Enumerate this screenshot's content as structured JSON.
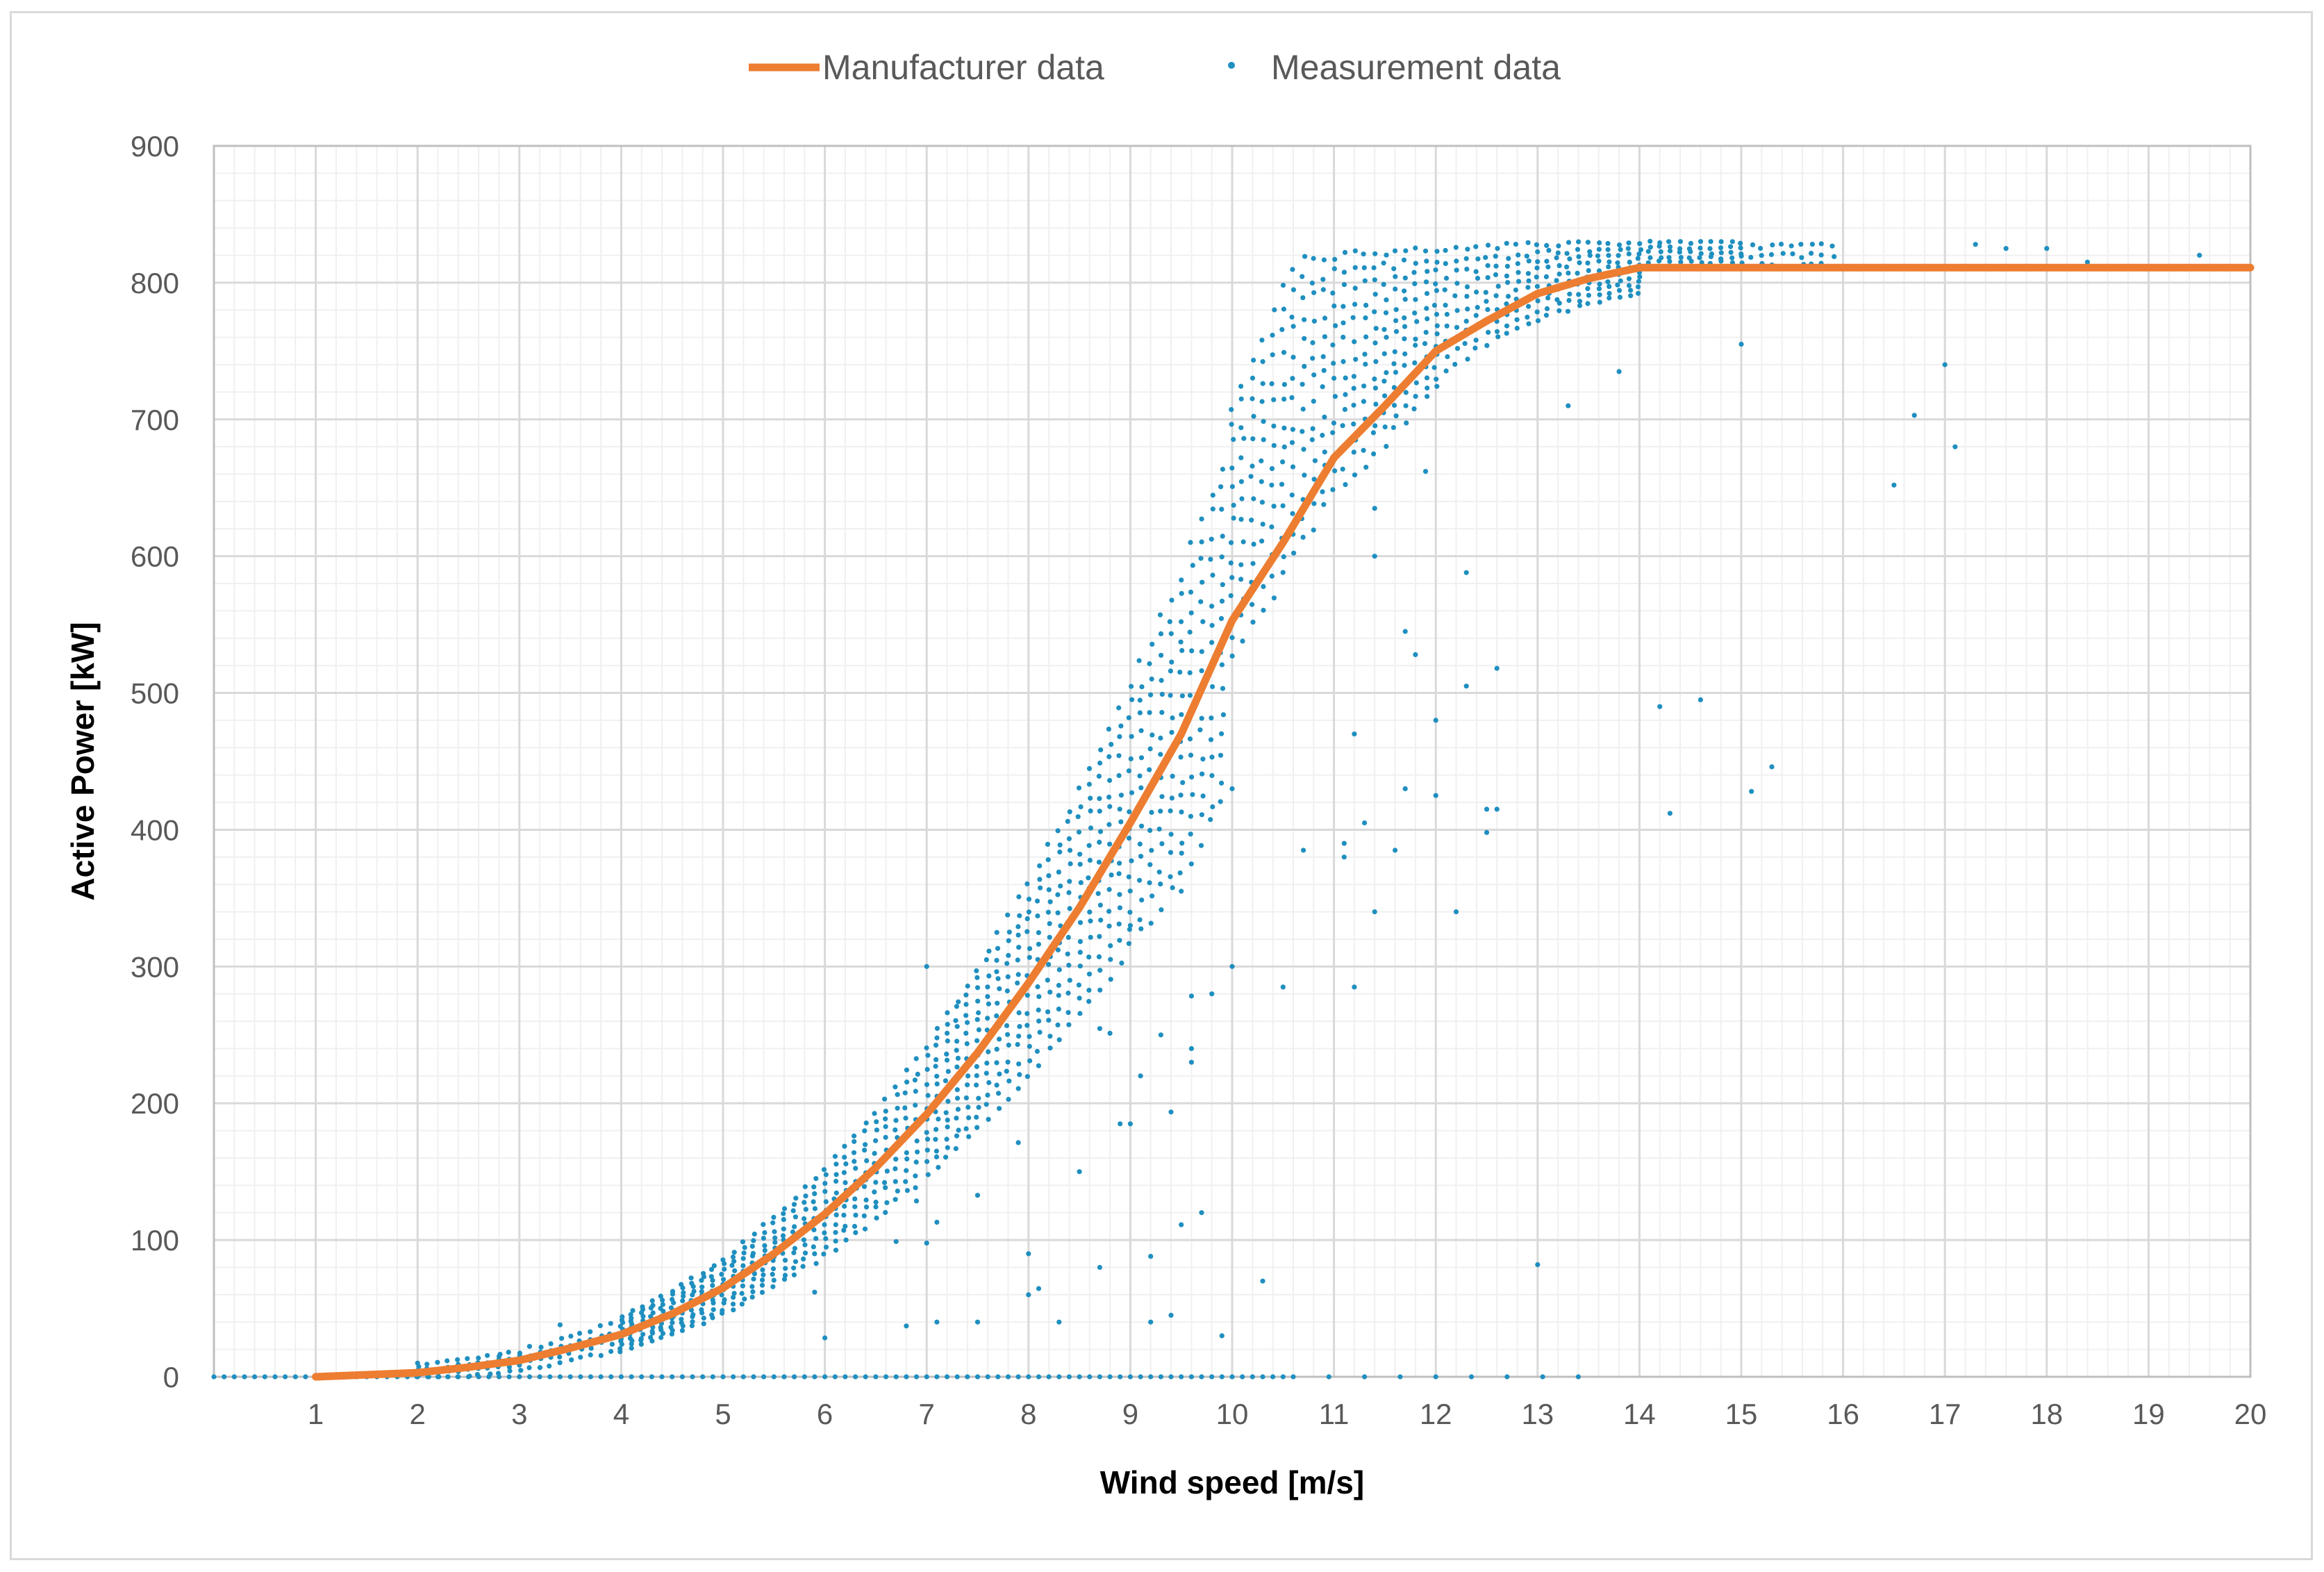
{
  "chart_data": {
    "type": "scatter",
    "xlabel": "Wind speed [m/s]",
    "ylabel": "Active Power [kW]",
    "xlim": [
      0,
      20
    ],
    "ylim": [
      0,
      900
    ],
    "x_ticks": [
      "1",
      "2",
      "3",
      "4",
      "5",
      "6",
      "7",
      "8",
      "9",
      "10",
      "11",
      "12",
      "13",
      "14",
      "15",
      "16",
      "17",
      "18",
      "19",
      "20"
    ],
    "y_ticks": [
      "0",
      "100",
      "200",
      "300",
      "400",
      "500",
      "600",
      "700",
      "800",
      "900"
    ],
    "grid": true,
    "legend_position": "top-center",
    "series": [
      {
        "name": "Manufacturer data",
        "kind": "line",
        "color": "#ED7D31",
        "x": [
          1,
          2,
          2.5,
          3,
          3.5,
          4,
          4.5,
          5,
          5.5,
          6,
          6.5,
          7,
          7.5,
          8,
          8.5,
          9,
          9.5,
          10,
          10.5,
          11,
          11.5,
          12,
          12.5,
          13,
          13.5,
          14,
          15,
          16,
          17,
          18,
          19,
          20
        ],
        "y": [
          0,
          3,
          7,
          12,
          21,
          31,
          46,
          65,
          90,
          119,
          153,
          192,
          237,
          288,
          343,
          405,
          470,
          553,
          610,
          672,
          710,
          750,
          772,
          792,
          803,
          811,
          811,
          811,
          811,
          811,
          811,
          811
        ]
      },
      {
        "name": "Measurement data",
        "kind": "scatter",
        "color": "#1F8FBF",
        "outliers": [
          [
            7.0,
            300
          ],
          [
            7.1,
            40
          ],
          [
            7.5,
            40
          ],
          [
            8.0,
            90
          ],
          [
            8.0,
            60
          ],
          [
            8.3,
            40
          ],
          [
            8.5,
            150
          ],
          [
            8.7,
            80
          ],
          [
            8.9,
            185
          ],
          [
            9.0,
            185
          ],
          [
            9.0,
            330
          ],
          [
            9.1,
            220
          ],
          [
            9.2,
            40
          ],
          [
            9.3,
            250
          ],
          [
            9.4,
            45
          ],
          [
            9.5,
            355
          ],
          [
            9.6,
            240
          ],
          [
            9.6,
            230
          ],
          [
            9.7,
            120
          ],
          [
            9.8,
            280
          ],
          [
            9.9,
            30
          ],
          [
            10.0,
            300
          ],
          [
            10.0,
            430
          ],
          [
            10.3,
            70
          ],
          [
            10.5,
            285
          ],
          [
            10.7,
            385
          ],
          [
            11.1,
            380
          ],
          [
            11.1,
            390
          ],
          [
            11.2,
            285
          ],
          [
            11.2,
            470
          ],
          [
            11.3,
            405
          ],
          [
            11.4,
            340
          ],
          [
            11.4,
            600
          ],
          [
            11.4,
            635
          ],
          [
            11.6,
            385
          ],
          [
            11.7,
            430
          ],
          [
            11.7,
            545
          ],
          [
            11.8,
            528
          ],
          [
            11.9,
            662
          ],
          [
            12.0,
            425
          ],
          [
            12.0,
            480
          ],
          [
            12.2,
            340
          ],
          [
            12.3,
            505
          ],
          [
            12.3,
            588
          ],
          [
            12.5,
            415
          ],
          [
            12.5,
            398
          ],
          [
            12.6,
            415
          ],
          [
            12.6,
            518
          ],
          [
            13.0,
            82
          ],
          [
            13.3,
            710
          ],
          [
            13.8,
            735
          ],
          [
            14.2,
            490
          ],
          [
            14.3,
            412
          ],
          [
            14.6,
            495
          ],
          [
            15.0,
            755
          ],
          [
            15.1,
            428
          ],
          [
            15.3,
            446
          ],
          [
            16.5,
            652
          ],
          [
            16.7,
            703
          ],
          [
            17.0,
            740
          ],
          [
            17.1,
            680
          ],
          [
            18.0,
            825
          ],
          [
            18.4,
            815
          ],
          [
            19.5,
            820
          ],
          [
            17.6,
            825
          ],
          [
            17.3,
            828
          ],
          [
            3.4,
            38
          ],
          [
            2.0,
            10
          ],
          [
            2.8,
            15
          ]
        ],
        "baseline_zero_range": [
          0,
          13.7
        ]
      }
    ]
  }
}
